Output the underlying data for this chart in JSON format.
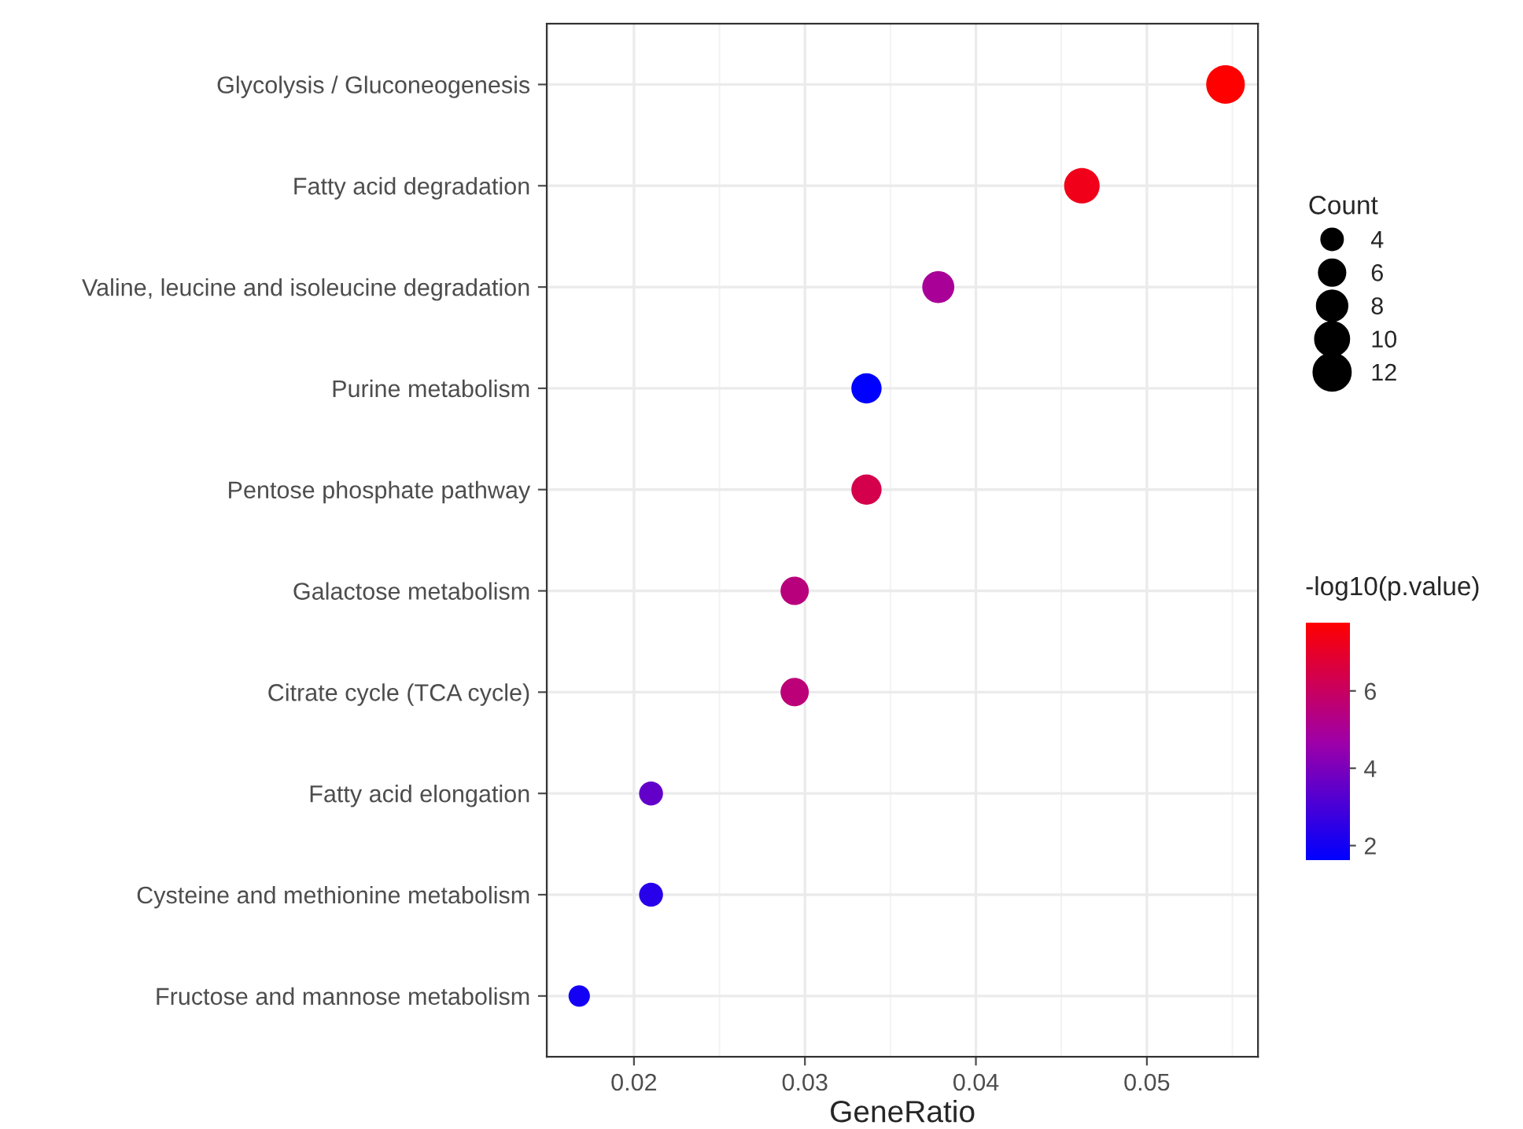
{
  "chart_data": {
    "type": "bubble",
    "orientation": "horizontal",
    "xlabel": "GeneRatio",
    "legend_title": "Count",
    "clabel": "-log10(p.value)",
    "categories": [
      "Glycolysis / Gluconeogenesis",
      "Fatty acid degradation",
      "Valine, leucine and isoleucine degradation",
      "Purine metabolism",
      "Pentose phosphate pathway",
      "Galactose metabolism",
      "Citrate cycle (TCA cycle)",
      "Fatty acid elongation",
      "Cysteine and methionine metabolism",
      "Fructose and mannose metabolism"
    ],
    "values": [
      0.0546,
      0.0462,
      0.0378,
      0.0336,
      0.0336,
      0.0294,
      0.0294,
      0.021,
      0.021,
      0.0168
    ],
    "sizes": [
      13,
      11,
      9,
      8,
      8,
      7,
      7,
      5,
      5,
      4
    ],
    "cvalues": [
      7.78,
      7.3,
      5.0,
      1.62,
      6.4,
      5.5,
      5.6,
      3.5,
      2.4,
      2.0
    ],
    "size_legend": [
      4,
      6,
      8,
      10,
      12
    ],
    "xlim": [
      0.0149,
      0.0565
    ],
    "xticks": [
      0.02,
      0.03,
      0.04,
      0.05
    ],
    "clim": [
      1.62,
      7.78
    ],
    "cticks": [
      2,
      4,
      6
    ],
    "grid": true,
    "marker": "circle"
  }
}
